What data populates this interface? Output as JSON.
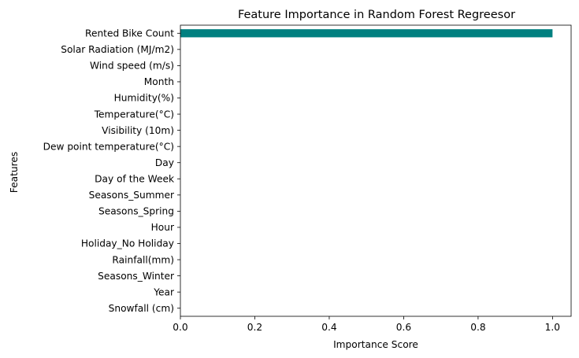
{
  "chart_data": {
    "type": "bar",
    "orientation": "horizontal",
    "title": "Feature Importance in Random Forest Regreesor",
    "xlabel": "Importance Score",
    "ylabel": "Features",
    "categories": [
      "Rented Bike Count",
      "Solar Radiation (MJ/m2)",
      "Wind speed (m/s)",
      "Month",
      "Humidity(%)",
      "Temperature(°C)",
      "Visibility (10m)",
      "Dew point temperature(°C)",
      "Day",
      "Day of the Week",
      "Seasons_Summer",
      "Seasons_Spring",
      "Hour",
      "Holiday_No Holiday",
      "Rainfall(mm)",
      "Seasons_Winter",
      "Year",
      "Snowfall (cm)"
    ],
    "values": [
      1.0,
      0,
      0,
      0,
      0,
      0,
      0,
      0,
      0,
      0,
      0,
      0,
      0,
      0,
      0,
      0,
      0,
      0
    ],
    "xlim": [
      0,
      1.05
    ],
    "xticks": [
      "0.0",
      "0.2",
      "0.4",
      "0.6",
      "0.8",
      "1.0"
    ],
    "grid": false,
    "bar_color": "#008080"
  }
}
